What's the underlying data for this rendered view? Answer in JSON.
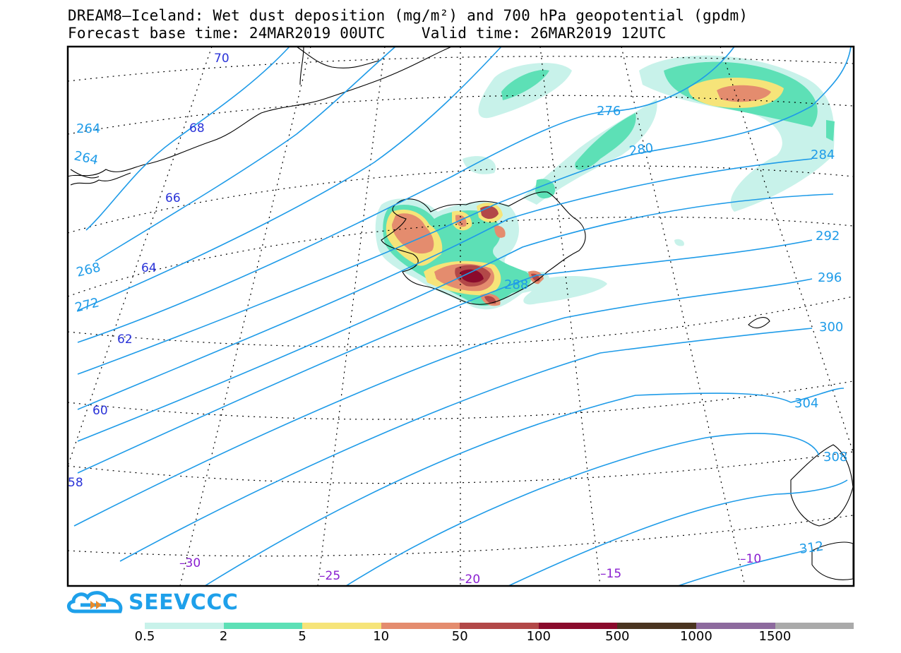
{
  "header": {
    "title_line1": "DREAM8–Iceland: Wet dust deposition (mg/m²) and 700 hPa geopotential (gpdm)",
    "title_line2": "Forecast base time: 24MAR2019 00UTC    Valid time: 26MAR2019 12UTC"
  },
  "map": {
    "latitude_labels": [
      "70",
      "68",
      "66",
      "64",
      "62",
      "60",
      "58"
    ],
    "longitude_labels": [
      "-30",
      "-25",
      "-20",
      "-15",
      "-10"
    ],
    "longitude_label_text": [
      "–30",
      "–25",
      "–20",
      "–15",
      "–10"
    ],
    "contour_labels": [
      "264",
      "264",
      "268",
      "272",
      "276",
      "280",
      "284",
      "288",
      "292",
      "296",
      "300",
      "304",
      "308",
      "312"
    ],
    "colors": {
      "contour": "#1e9be8",
      "latitude_label": "#2a33d8",
      "longitude_label": "#8a1fd0",
      "coastline": "#000000"
    }
  },
  "branding": {
    "logo_text": "SEEVCCC",
    "logo_icon": "cloud-arrow-icon"
  },
  "legend": {
    "labels": [
      "0.5",
      "2",
      "5",
      "10",
      "50",
      "100",
      "500",
      "1000",
      "1500"
    ],
    "colors": [
      "#c8f2ea",
      "#5de0b6",
      "#f6e479",
      "#e48c6e",
      "#b24848",
      "#8a0a2c",
      "#4a3420",
      "#8d6a9e",
      "#aaaaaa"
    ]
  }
}
